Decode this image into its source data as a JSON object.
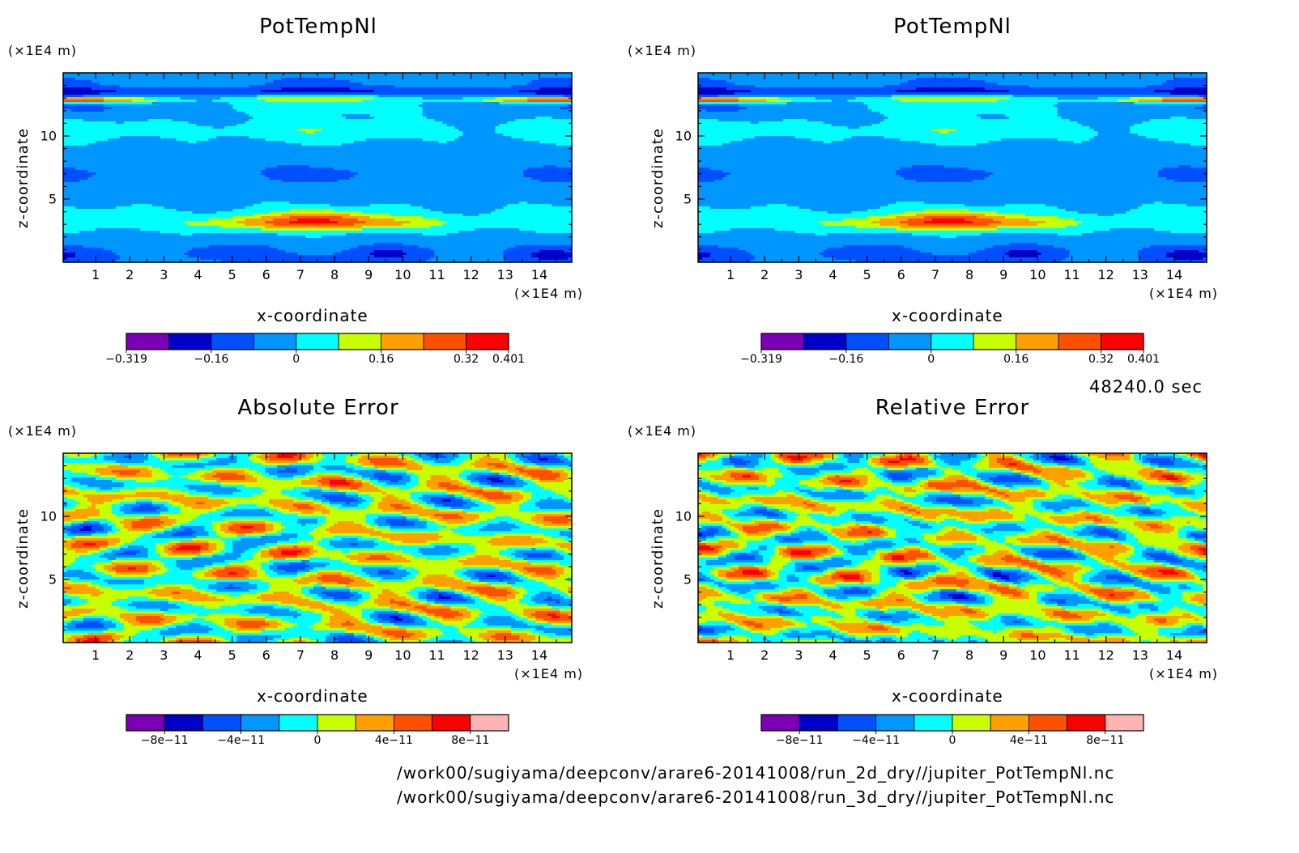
{
  "colors": {
    "levels": [
      "#7b00b4",
      "#0000c8",
      "#0050ff",
      "#0096ff",
      "#00ffff",
      "#c8ff00",
      "#ffa000",
      "#ff5000",
      "#ff0000",
      "#ffb4b4"
    ],
    "frame": "#000000"
  },
  "timestamp": "48240.0 sec",
  "footer": {
    "line1": "/work00/sugiyama/deepconv/arare6-20141008/run_2d_dry//jupiter_PotTempNl.nc",
    "line2": "/work00/sugiyama/deepconv/arare6-20141008/run_3d_dry//jupiter_PotTempNl.nc"
  },
  "chart_data": [
    {
      "type": "heatmap",
      "title": "PotTempNl",
      "xlabel": "x-coordinate",
      "ylabel": "z-coordinate",
      "x_unit": "(×1E4 m)",
      "y_unit": "(×1E4 m)",
      "xlim": [
        0.05,
        14.95
      ],
      "ylim": [
        0,
        15
      ],
      "x_ticks": [
        "1",
        "2",
        "3",
        "4",
        "5",
        "6",
        "7",
        "8",
        "9",
        "10",
        "11",
        "12",
        "13",
        "14"
      ],
      "y_ticks": [
        "5",
        "10"
      ],
      "field": "potential_temperature",
      "colorbar": {
        "levels": [
          -0.319,
          -0.239,
          -0.16,
          -0.08,
          0,
          0.08,
          0.16,
          0.24,
          0.32,
          0.401
        ],
        "tick_labels": [
          "−0.319",
          "−0.16",
          "0",
          "0.16",
          "0.32",
          "0.401"
        ],
        "tick_values": [
          -0.319,
          -0.16,
          0,
          0.16,
          0.32,
          0.401
        ]
      }
    },
    {
      "type": "heatmap",
      "title": "PotTempNl",
      "xlabel": "x-coordinate",
      "ylabel": "z-coordinate",
      "x_unit": "(×1E4 m)",
      "y_unit": "(×1E4 m)",
      "xlim": [
        0.05,
        14.95
      ],
      "ylim": [
        0,
        15
      ],
      "x_ticks": [
        "1",
        "2",
        "3",
        "4",
        "5",
        "6",
        "7",
        "8",
        "9",
        "10",
        "11",
        "12",
        "13",
        "14"
      ],
      "y_ticks": [
        "5",
        "10"
      ],
      "field": "potential_temperature",
      "colorbar": {
        "levels": [
          -0.319,
          -0.239,
          -0.16,
          -0.08,
          0,
          0.08,
          0.16,
          0.24,
          0.32,
          0.401
        ],
        "tick_labels": [
          "−0.319",
          "−0.16",
          "0",
          "0.16",
          "0.32",
          "0.401"
        ],
        "tick_values": [
          -0.319,
          -0.16,
          0,
          0.16,
          0.32,
          0.401
        ]
      }
    },
    {
      "type": "heatmap",
      "title": "Absolute Error",
      "xlabel": "x-coordinate",
      "ylabel": "z-coordinate",
      "x_unit": "(×1E4 m)",
      "y_unit": "(×1E4 m)",
      "xlim": [
        0.05,
        14.95
      ],
      "ylim": [
        0,
        15
      ],
      "x_ticks": [
        "1",
        "2",
        "3",
        "4",
        "5",
        "6",
        "7",
        "8",
        "9",
        "10",
        "11",
        "12",
        "13",
        "14"
      ],
      "y_ticks": [
        "5",
        "10"
      ],
      "field": "error_abs",
      "colorbar": {
        "levels": [
          -1e-10,
          -8e-11,
          -6e-11,
          -4e-11,
          -2e-11,
          0,
          2e-11,
          4e-11,
          6e-11,
          8e-11,
          1e-10
        ],
        "tick_labels": [
          "−8e−11",
          "−4e−11",
          "0",
          "4e−11",
          "8e−11"
        ],
        "tick_values": [
          -8e-11,
          -4e-11,
          0,
          4e-11,
          8e-11
        ]
      }
    },
    {
      "type": "heatmap",
      "title": "Relative Error",
      "xlabel": "x-coordinate",
      "ylabel": "z-coordinate",
      "x_unit": "(×1E4 m)",
      "y_unit": "(×1E4 m)",
      "xlim": [
        0.05,
        14.95
      ],
      "ylim": [
        0,
        15
      ],
      "x_ticks": [
        "1",
        "2",
        "3",
        "4",
        "5",
        "6",
        "7",
        "8",
        "9",
        "10",
        "11",
        "12",
        "13",
        "14"
      ],
      "y_ticks": [
        "5",
        "10"
      ],
      "field": "error_rel",
      "colorbar": {
        "levels": [
          -1e-10,
          -8e-11,
          -6e-11,
          -4e-11,
          -2e-11,
          0,
          2e-11,
          4e-11,
          6e-11,
          8e-11,
          1e-10
        ],
        "tick_labels": [
          "−8e−11",
          "−4e−11",
          "0",
          "4e−11",
          "8e−11"
        ],
        "tick_values": [
          -8e-11,
          -4e-11,
          0,
          4e-11,
          8e-11
        ]
      }
    }
  ]
}
